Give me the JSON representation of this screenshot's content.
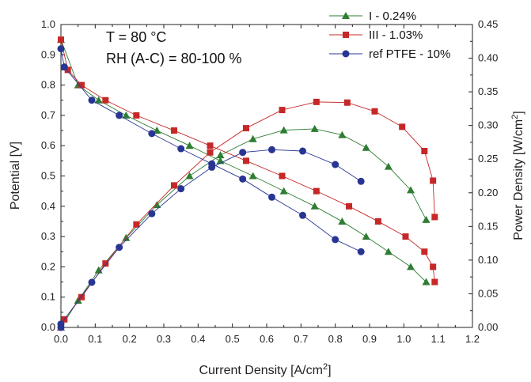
{
  "chart_data": {
    "type": "line",
    "xlabel": "Current Density [A/cm",
    "xlabel_sup": "2",
    "xlabel_end": "]",
    "ylabel_left": "Potential [V]",
    "ylabel_right": "Power Density [W/cm",
    "ylabel_right_sup": "2",
    "ylabel_right_end": "]",
    "xlim": [
      0.0,
      1.2
    ],
    "ylim_left": [
      0.0,
      1.0
    ],
    "ylim_right": [
      0.0,
      0.45
    ],
    "x_ticks": [
      "0.0",
      "0.1",
      "0.2",
      "0.3",
      "0.4",
      "0.5",
      "0.6",
      "0.7",
      "0.8",
      "0.9",
      "1.0",
      "1.1",
      "1.2"
    ],
    "y_left_ticks": [
      "0.0",
      "0.1",
      "0.2",
      "0.3",
      "0.4",
      "0.5",
      "0.6",
      "0.7",
      "0.8",
      "0.9",
      "1.0"
    ],
    "y_right_ticks": [
      "0.00",
      "0.05",
      "0.10",
      "0.15",
      "0.20",
      "0.25",
      "0.30",
      "0.35",
      "0.40",
      "0.45"
    ],
    "annotations": [
      "T = 80 °C",
      "RH (A-C) = 80-100 %"
    ],
    "legend_placement": "top-right",
    "grid": false,
    "series": [
      {
        "name": "I - 0.24%",
        "color": "#2e7d32",
        "marker": "triangle",
        "polarization": [
          [
            0.0,
            0.95
          ],
          [
            0.05,
            0.8
          ],
          [
            0.11,
            0.75
          ],
          [
            0.19,
            0.7
          ],
          [
            0.28,
            0.65
          ],
          [
            0.375,
            0.6
          ],
          [
            0.465,
            0.55
          ],
          [
            0.56,
            0.5
          ],
          [
            0.65,
            0.45
          ],
          [
            0.74,
            0.4
          ],
          [
            0.82,
            0.35
          ],
          [
            0.89,
            0.3
          ],
          [
            0.955,
            0.25
          ],
          [
            1.02,
            0.2
          ],
          [
            1.065,
            0.15
          ]
        ],
        "power": [
          [
            0.0,
            0.0
          ],
          [
            0.05,
            0.04
          ],
          [
            0.11,
            0.085
          ],
          [
            0.19,
            0.133
          ],
          [
            0.28,
            0.182
          ],
          [
            0.375,
            0.225
          ],
          [
            0.465,
            0.256
          ],
          [
            0.56,
            0.28
          ],
          [
            0.65,
            0.293
          ],
          [
            0.74,
            0.295
          ],
          [
            0.82,
            0.286
          ],
          [
            0.89,
            0.267
          ],
          [
            0.955,
            0.239
          ],
          [
            1.02,
            0.204
          ],
          [
            1.065,
            0.16
          ]
        ]
      },
      {
        "name": "III - 1.03%",
        "color": "#c62828",
        "marker": "square",
        "polarization": [
          [
            0.0,
            0.95
          ],
          [
            0.02,
            0.85
          ],
          [
            0.06,
            0.8
          ],
          [
            0.13,
            0.75
          ],
          [
            0.22,
            0.7
          ],
          [
            0.33,
            0.65
          ],
          [
            0.435,
            0.6
          ],
          [
            0.54,
            0.55
          ],
          [
            0.645,
            0.5
          ],
          [
            0.745,
            0.45
          ],
          [
            0.84,
            0.4
          ],
          [
            0.925,
            0.35
          ],
          [
            1.005,
            0.3
          ],
          [
            1.06,
            0.25
          ],
          [
            1.085,
            0.2
          ],
          [
            1.09,
            0.15
          ]
        ],
        "power": [
          [
            0.0,
            0.0
          ],
          [
            0.01,
            0.012
          ],
          [
            0.06,
            0.045
          ],
          [
            0.13,
            0.095
          ],
          [
            0.22,
            0.153
          ],
          [
            0.33,
            0.211
          ],
          [
            0.435,
            0.26
          ],
          [
            0.54,
            0.296
          ],
          [
            0.645,
            0.323
          ],
          [
            0.745,
            0.335
          ],
          [
            0.835,
            0.334
          ],
          [
            0.915,
            0.321
          ],
          [
            0.995,
            0.298
          ],
          [
            1.06,
            0.262
          ],
          [
            1.085,
            0.218
          ],
          [
            1.09,
            0.164
          ]
        ]
      },
      {
        "name": "ref PTFE - 10%",
        "color": "#283593",
        "marker": "circle",
        "polarization": [
          [
            0.0,
            0.92
          ],
          [
            0.01,
            0.86
          ],
          [
            0.09,
            0.75
          ],
          [
            0.17,
            0.7
          ],
          [
            0.265,
            0.64
          ],
          [
            0.35,
            0.59
          ],
          [
            0.44,
            0.54
          ],
          [
            0.53,
            0.49
          ],
          [
            0.615,
            0.43
          ],
          [
            0.705,
            0.37
          ],
          [
            0.8,
            0.29
          ],
          [
            0.875,
            0.25
          ]
        ],
        "power": [
          [
            0.0,
            0.0
          ],
          [
            0.0,
            0.005
          ],
          [
            0.09,
            0.067
          ],
          [
            0.17,
            0.119
          ],
          [
            0.265,
            0.169
          ],
          [
            0.35,
            0.206
          ],
          [
            0.44,
            0.238
          ],
          [
            0.53,
            0.26
          ],
          [
            0.615,
            0.264
          ],
          [
            0.705,
            0.262
          ],
          [
            0.8,
            0.242
          ],
          [
            0.875,
            0.217
          ]
        ]
      }
    ]
  }
}
